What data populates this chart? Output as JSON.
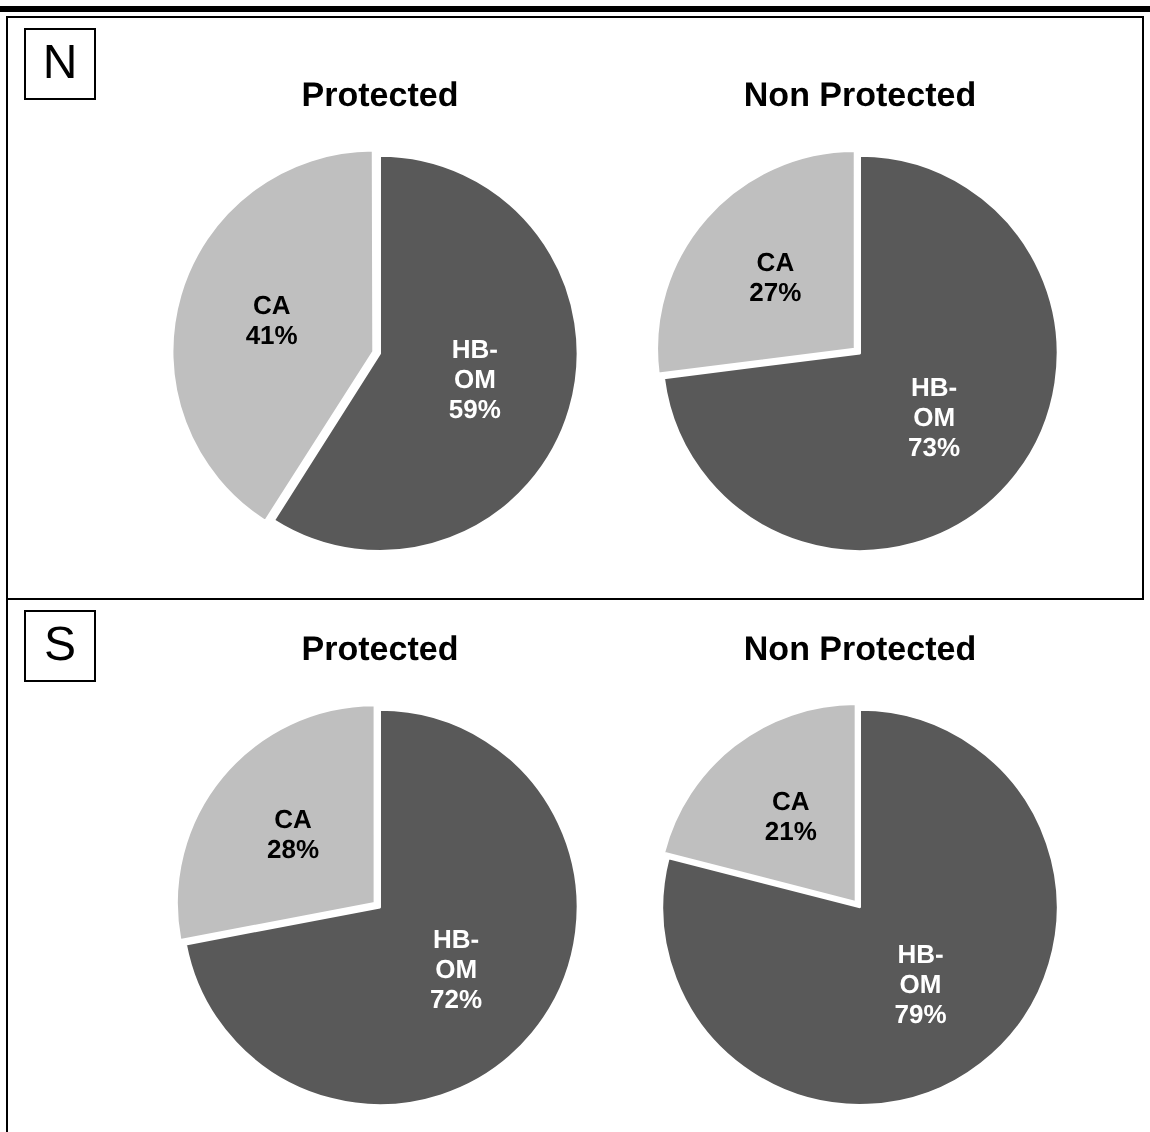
{
  "chart_data": [
    {
      "type": "pie",
      "title": "Protected",
      "annotations": [
        "N"
      ],
      "categories": [
        "HB-OM",
        "CA"
      ],
      "values": [
        59,
        41
      ],
      "value_labels": [
        "59%",
        "41%"
      ],
      "colors": [
        "#595959",
        "#bfbfbf"
      ]
    },
    {
      "type": "pie",
      "title": "Non Protected",
      "categories": [
        "HB-OM",
        "CA"
      ],
      "values": [
        73,
        27
      ],
      "value_labels": [
        "73%",
        "27%"
      ],
      "colors": [
        "#595959",
        "#bfbfbf"
      ]
    },
    {
      "type": "pie",
      "title": "Protected",
      "annotations": [
        "S"
      ],
      "categories": [
        "HB-OM",
        "CA"
      ],
      "values": [
        72,
        28
      ],
      "value_labels": [
        "72%",
        "28%"
      ],
      "colors": [
        "#595959",
        "#bfbfbf"
      ]
    },
    {
      "type": "pie",
      "title": "Non Protected",
      "categories": [
        "HB-OM",
        "CA"
      ],
      "values": [
        79,
        21
      ],
      "value_labels": [
        "79%",
        "21%"
      ],
      "colors": [
        "#595959",
        "#bfbfbf"
      ]
    }
  ]
}
